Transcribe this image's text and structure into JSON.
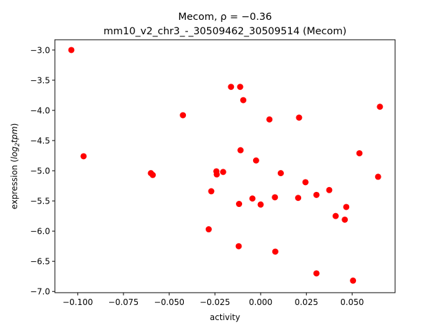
{
  "chart_data": {
    "type": "scatter",
    "title_line1": "Mecom, ρ = −0.36",
    "title_line2": "mm10_v2_chr3_-_30509462_30509514 (Mecom)",
    "xlabel": "activity",
    "ylabel_prefix": "expression (",
    "ylabel_math": "log",
    "ylabel_sub": "2",
    "ylabel_math2": "tpm",
    "ylabel_suffix": ")",
    "xlim": [
      -0.1125,
      0.0735
    ],
    "ylim": [
      -7.02,
      -2.83
    ],
    "xticks": [
      -0.1,
      -0.075,
      -0.05,
      -0.025,
      0.0,
      0.025,
      0.05
    ],
    "xtick_labels": [
      "−0.100",
      "−0.075",
      "−0.050",
      "−0.025",
      "0.000",
      "0.025",
      "0.050"
    ],
    "yticks": [
      -3.0,
      -3.5,
      -4.0,
      -4.5,
      -5.0,
      -5.5,
      -6.0,
      -6.5,
      -7.0
    ],
    "ytick_labels": [
      "−3.0",
      "−3.5",
      "−4.0",
      "−4.5",
      "−5.0",
      "−5.5",
      "−6.0",
      "−6.5",
      "−7.0"
    ],
    "point_color": "#ff0000",
    "grid": false,
    "legend": "none",
    "points": [
      {
        "x": -0.1035,
        "y": -3.0
      },
      {
        "x": -0.0968,
        "y": -4.76
      },
      {
        "x": -0.06,
        "y": -5.04
      },
      {
        "x": -0.059,
        "y": -5.07
      },
      {
        "x": -0.0425,
        "y": -4.08
      },
      {
        "x": -0.0284,
        "y": -5.97
      },
      {
        "x": -0.027,
        "y": -5.34
      },
      {
        "x": -0.0242,
        "y": -5.01
      },
      {
        "x": -0.024,
        "y": -5.06
      },
      {
        "x": -0.0205,
        "y": -5.02
      },
      {
        "x": -0.0162,
        "y": -3.61
      },
      {
        "x": -0.012,
        "y": -6.25
      },
      {
        "x": -0.0118,
        "y": -5.55
      },
      {
        "x": -0.0112,
        "y": -3.61
      },
      {
        "x": -0.011,
        "y": -4.66
      },
      {
        "x": -0.0095,
        "y": -3.83
      },
      {
        "x": -0.0045,
        "y": -5.46
      },
      {
        "x": -0.0025,
        "y": -4.83
      },
      {
        "x": 0.0,
        "y": -5.56
      },
      {
        "x": 0.0048,
        "y": -4.15
      },
      {
        "x": 0.0078,
        "y": -5.44
      },
      {
        "x": 0.008,
        "y": -6.34
      },
      {
        "x": 0.011,
        "y": -5.04
      },
      {
        "x": 0.0205,
        "y": -5.45
      },
      {
        "x": 0.021,
        "y": -4.12
      },
      {
        "x": 0.0245,
        "y": -5.19
      },
      {
        "x": 0.0305,
        "y": -5.4
      },
      {
        "x": 0.0305,
        "y": -6.7
      },
      {
        "x": 0.0375,
        "y": -5.32
      },
      {
        "x": 0.041,
        "y": -5.75
      },
      {
        "x": 0.046,
        "y": -5.81
      },
      {
        "x": 0.0468,
        "y": -5.6
      },
      {
        "x": 0.0505,
        "y": -6.82
      },
      {
        "x": 0.054,
        "y": -4.71
      },
      {
        "x": 0.0642,
        "y": -5.1
      },
      {
        "x": 0.0652,
        "y": -3.94
      }
    ]
  }
}
